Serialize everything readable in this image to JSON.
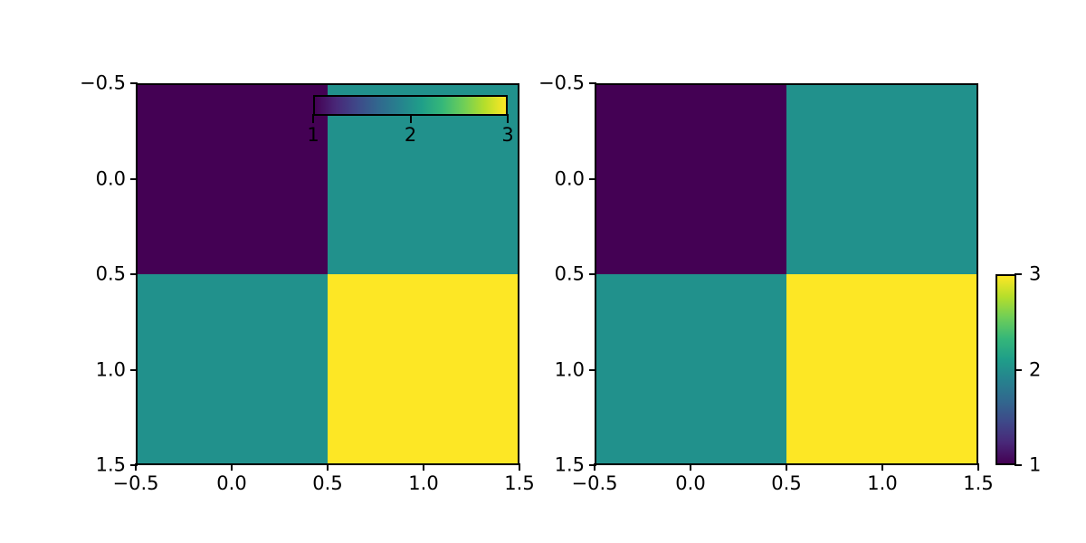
{
  "colors": {
    "background": "#ffffff",
    "axis": "#000000",
    "value_colors": {
      "1": "#440154",
      "2": "#21918c",
      "3": "#fde725"
    },
    "viridis_stops": [
      "#440154",
      "#482878",
      "#3e4989",
      "#31688e",
      "#26828e",
      "#1f9e89",
      "#35b779",
      "#6ece58",
      "#b5de2b",
      "#fde725"
    ]
  },
  "chart_data": [
    {
      "type": "heatmap",
      "title": "",
      "colormap": "viridis",
      "vmin": 1,
      "vmax": 3,
      "matrix": [
        [
          1,
          2
        ],
        [
          2,
          3
        ]
      ],
      "xlim": [
        -0.5,
        1.5
      ],
      "ylim": [
        1.5,
        -0.5
      ],
      "x_ticks": [
        "−0.5",
        "0.0",
        "0.5",
        "1.0",
        "1.5"
      ],
      "y_ticks": [
        "−0.5",
        "0.0",
        "0.5",
        "1.0",
        "1.5"
      ],
      "grid": false,
      "colorbar": {
        "orientation": "horizontal",
        "location": "inset overlaying top of axes",
        "ticks": [
          "1",
          "2",
          "3"
        ]
      }
    },
    {
      "type": "heatmap",
      "title": "",
      "colormap": "viridis",
      "vmin": 1,
      "vmax": 3,
      "matrix": [
        [
          1,
          2
        ],
        [
          2,
          3
        ]
      ],
      "xlim": [
        -0.5,
        1.5
      ],
      "ylim": [
        1.5,
        -0.5
      ],
      "x_ticks": [
        "−0.5",
        "0.0",
        "0.5",
        "1.0",
        "1.5"
      ],
      "y_ticks": [
        "−0.5",
        "0.0",
        "0.5",
        "1.0",
        "1.5"
      ],
      "grid": false,
      "colorbar": {
        "orientation": "vertical",
        "location": "outside right, lower half of axes",
        "ticks_top_to_bottom": [
          "3",
          "2",
          "1"
        ]
      }
    }
  ]
}
